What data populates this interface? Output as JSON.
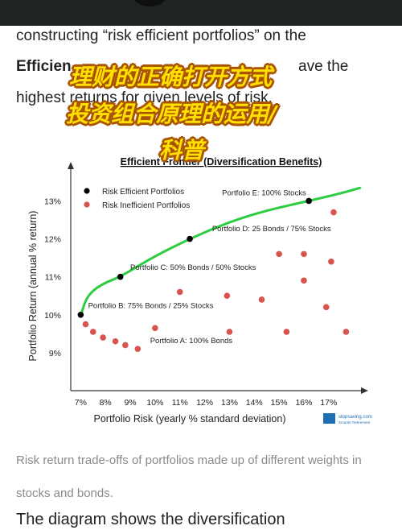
{
  "article": {
    "line1": "constructing “risk efficient portfolios” on the",
    "line2_bold": "Efficien",
    "line2_rest": "ave the",
    "line3": "highest returns for given levels of risk.",
    "caption": "Risk return trade-offs of portfolios made up of different weights in stocks and bonds.",
    "tail": "The diagram shows the diversification"
  },
  "overlay": {
    "line1": "理财的正确打开方式",
    "line2": "投资组合原理的运用/",
    "line3": "科普"
  },
  "watermark": {
    "brand": "stopsaving.com",
    "sub": "Smarter Retirement"
  },
  "colors": {
    "frontier": "#2ecc40",
    "efficient": "#000000",
    "inefficient": "#d9534f",
    "header_bar": "#1f2324",
    "overlay_text": "#ffe000"
  },
  "chart_data": {
    "type": "scatter",
    "title": "Efficient Frontier (Diversification Benefits)",
    "xlabel": "Portfolio Risk (yearly % standard deviation)",
    "ylabel": "Portfolio Return (annual % return)",
    "xticks": [
      "7%",
      "8%",
      "9%",
      "10%",
      "11%",
      "12%",
      "13%",
      "14%",
      "15%",
      "16%",
      "17%"
    ],
    "yticks": [
      "9%",
      "10%",
      "11%",
      "12%",
      "13%"
    ],
    "xlim": [
      6.6,
      18.4
    ],
    "ylim": [
      8.0,
      13.9
    ],
    "grid": false,
    "legend_position": "top-left",
    "series": [
      {
        "name": "Risk Efficient Portfolios",
        "color": "#000000",
        "points": [
          [
            7.0,
            10.0
          ],
          [
            8.6,
            11.0
          ],
          [
            11.4,
            12.0
          ],
          [
            16.2,
            13.0
          ]
        ]
      },
      {
        "name": "Risk Inefficient Portfolios",
        "color": "#d9534f",
        "points": [
          [
            7.2,
            9.75
          ],
          [
            7.5,
            9.55
          ],
          [
            7.9,
            9.4
          ],
          [
            8.4,
            9.3
          ],
          [
            8.8,
            9.2
          ],
          [
            9.3,
            9.1
          ],
          [
            10.0,
            9.65
          ],
          [
            11.0,
            10.6
          ],
          [
            12.9,
            10.5
          ],
          [
            14.3,
            10.4
          ],
          [
            13.0,
            9.55
          ],
          [
            15.3,
            9.55
          ],
          [
            15.0,
            11.6
          ],
          [
            16.0,
            11.6
          ],
          [
            16.0,
            10.9
          ],
          [
            16.9,
            10.2
          ],
          [
            17.1,
            11.4
          ],
          [
            17.2,
            12.7
          ],
          [
            17.7,
            9.55
          ]
        ]
      }
    ],
    "frontier": [
      [
        7.0,
        9.95
      ],
      [
        7.15,
        10.35
      ],
      [
        7.5,
        10.65
      ],
      [
        8.0,
        10.85
      ],
      [
        8.6,
        11.0
      ],
      [
        10.0,
        11.55
      ],
      [
        11.4,
        12.0
      ],
      [
        13.0,
        12.45
      ],
      [
        14.5,
        12.75
      ],
      [
        16.2,
        13.0
      ],
      [
        17.5,
        13.2
      ],
      [
        18.3,
        13.35
      ]
    ],
    "annotations": [
      {
        "text": "Portfolio E: 100% Stocks",
        "x": 12.7,
        "y": 13.15
      },
      {
        "text": "Portfolio D: 25 Bonds / 75% Stocks",
        "x": 12.3,
        "y": 12.2
      },
      {
        "text": "Portfolio C: 50% Bonds / 50% Stocks",
        "x": 9.0,
        "y": 11.18
      },
      {
        "text": "Portfolio B: 75% Bonds / 25% Stocks",
        "x": 7.3,
        "y": 10.18
      },
      {
        "text": "Portfolio A: 100% Bonds",
        "x": 9.8,
        "y": 9.25
      }
    ]
  }
}
